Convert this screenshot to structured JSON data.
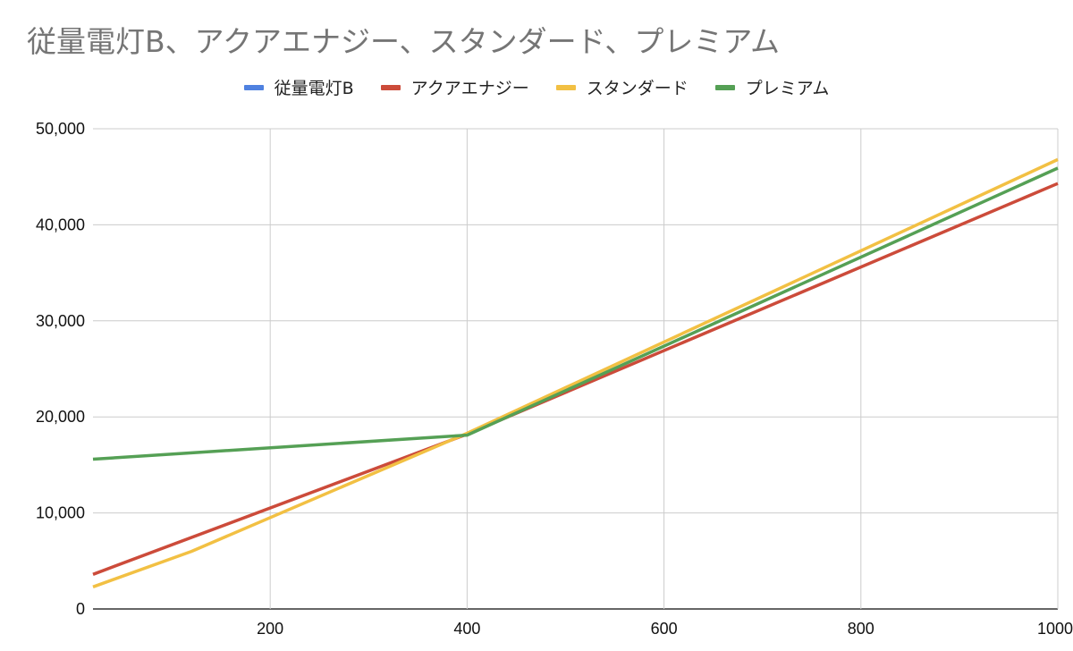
{
  "chart_data": {
    "type": "line",
    "title": "従量電灯B、アクアエナジー、スタンダード、プレミアム",
    "xlabel": "",
    "ylabel": "",
    "xlim": [
      20,
      1000
    ],
    "ylim": [
      0,
      50000
    ],
    "x_ticks": [
      200,
      400,
      600,
      800,
      1000
    ],
    "x_tick_labels": [
      "200",
      "400",
      "600",
      "800",
      "1000"
    ],
    "y_ticks": [
      0,
      10000,
      20000,
      30000,
      40000,
      50000
    ],
    "y_tick_labels": [
      "0",
      "10,000",
      "20,000",
      "30,000",
      "40,000",
      "50,000"
    ],
    "grid": true,
    "legend_position": "top-center",
    "series": [
      {
        "name": "従量電灯B",
        "color": "#4f81e0",
        "x": [],
        "y": []
      },
      {
        "name": "アクアエナジー",
        "color": "#cc4b3a",
        "x": [
          20,
          400,
          1000
        ],
        "y": [
          3600,
          18200,
          44300
        ]
      },
      {
        "name": "スタンダード",
        "color": "#f2c043",
        "x": [
          20,
          120,
          400,
          1000
        ],
        "y": [
          2300,
          6000,
          18300,
          46800
        ]
      },
      {
        "name": "プレミアム",
        "color": "#55a055",
        "x": [
          20,
          400,
          1000
        ],
        "y": [
          15600,
          18100,
          45900
        ]
      }
    ]
  }
}
